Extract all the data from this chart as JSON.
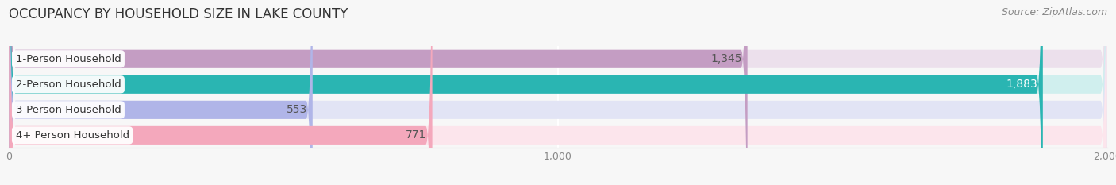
{
  "title": "OCCUPANCY BY HOUSEHOLD SIZE IN LAKE COUNTY",
  "source": "Source: ZipAtlas.com",
  "categories": [
    "1-Person Household",
    "2-Person Household",
    "3-Person Household",
    "4+ Person Household"
  ],
  "values": [
    1345,
    1883,
    553,
    771
  ],
  "bar_colors": [
    "#c49dc3",
    "#2ab5b2",
    "#b0b5e8",
    "#f4a8bc"
  ],
  "bar_bg_colors": [
    "#ece0ec",
    "#d0efee",
    "#e2e4f5",
    "#fce5ec"
  ],
  "row_bg_color": "#efefef",
  "value_label_colors": [
    "#555555",
    "#ffffff",
    "#555555",
    "#555555"
  ],
  "xlim": [
    0,
    2000
  ],
  "xticks": [
    0,
    1000,
    2000
  ],
  "title_fontsize": 12,
  "source_fontsize": 9,
  "bar_label_fontsize": 10,
  "cat_label_fontsize": 9.5,
  "tick_fontsize": 9,
  "background_color": "#f7f7f7"
}
